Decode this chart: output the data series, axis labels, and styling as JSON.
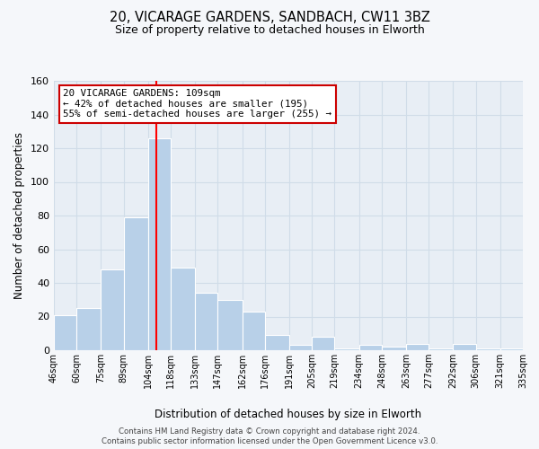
{
  "title1": "20, VICARAGE GARDENS, SANDBACH, CW11 3BZ",
  "title2": "Size of property relative to detached houses in Elworth",
  "xlabel": "Distribution of detached houses by size in Elworth",
  "ylabel": "Number of detached properties",
  "bin_edges": [
    46,
    60,
    75,
    89,
    104,
    118,
    133,
    147,
    162,
    176,
    191,
    205,
    219,
    234,
    248,
    263,
    277,
    292,
    306,
    321,
    335
  ],
  "bin_labels": [
    "46sqm",
    "60sqm",
    "75sqm",
    "89sqm",
    "104sqm",
    "118sqm",
    "133sqm",
    "147sqm",
    "162sqm",
    "176sqm",
    "191sqm",
    "205sqm",
    "219sqm",
    "234sqm",
    "248sqm",
    "263sqm",
    "277sqm",
    "292sqm",
    "306sqm",
    "321sqm",
    "335sqm"
  ],
  "counts": [
    21,
    25,
    48,
    79,
    126,
    49,
    34,
    30,
    23,
    9,
    3,
    8,
    1,
    3,
    2,
    4,
    1,
    4,
    1,
    1
  ],
  "bar_color": "#b8d0e8",
  "bar_edge_color": "#ffffff",
  "grid_color": "#d0dce8",
  "plot_bg_color": "#e8eef5",
  "fig_bg_color": "#f5f7fa",
  "red_line_x": 109,
  "annotation_line1": "20 VICARAGE GARDENS: 109sqm",
  "annotation_line2": "← 42% of detached houses are smaller (195)",
  "annotation_line3": "55% of semi-detached houses are larger (255) →",
  "annotation_box_color": "#ffffff",
  "annotation_border_color": "#cc0000",
  "ylim": [
    0,
    160
  ],
  "yticks": [
    0,
    20,
    40,
    60,
    80,
    100,
    120,
    140,
    160
  ],
  "footer1": "Contains HM Land Registry data © Crown copyright and database right 2024.",
  "footer2": "Contains public sector information licensed under the Open Government Licence v3.0."
}
